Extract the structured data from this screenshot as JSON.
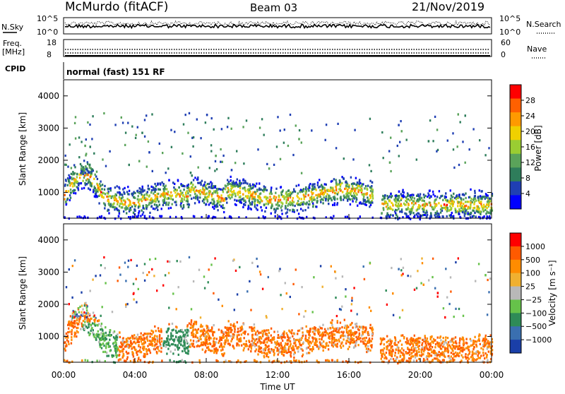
{
  "header": {
    "station": "McMurdo (fitACF)",
    "beam": "Beam 03",
    "date": "21/Nov/2019"
  },
  "top_panels": {
    "noise_left_label": "N.Sky",
    "noise_right_label": "N.Search",
    "noise_ticks_left": [
      "10^5",
      "10^0"
    ],
    "noise_ticks_right": [
      "10^5",
      "10^0"
    ],
    "freq_label_1": "Freq.",
    "freq_label_2": "[MHz]",
    "freq_ticks": [
      "18",
      "8"
    ],
    "nave_label": "Nave",
    "nave_ticks": [
      "60",
      "0"
    ],
    "cpid_label": "CPID",
    "cpid_value": "normal (fast) 151 RF"
  },
  "chart_data": [
    {
      "type": "heatmap",
      "name": "power",
      "ylabel": "Slant Range [km]",
      "yticks": [
        1000,
        2000,
        3000,
        4000
      ],
      "ylim": [
        200,
        4500
      ],
      "xlim": [
        0,
        24
      ],
      "colorbar_label": "Power [dB]",
      "colorbar_ticks": [
        "28",
        "24",
        "20",
        "16",
        "12",
        "8",
        "4"
      ],
      "colorscale": [
        "#0000ff",
        "#1f3fb3",
        "#2e7d5b",
        "#5aa35a",
        "#9acd32",
        "#f0d000",
        "#ff9a00",
        "#ff6000",
        "#ff0000"
      ]
    },
    {
      "type": "heatmap",
      "name": "velocity",
      "ylabel": "Slant Range [km]",
      "yticks": [
        1000,
        2000,
        3000,
        4000
      ],
      "ylim": [
        200,
        4500
      ],
      "xlim": [
        0,
        24
      ],
      "xlabel": "Time UT",
      "xtick_labels": [
        "00:00",
        "04:00",
        "08:00",
        "12:00",
        "16:00",
        "20:00",
        "00:00"
      ],
      "colorbar_label": "Velocity [m s⁻¹]",
      "colorbar_ticks": [
        "1000",
        "500",
        "100",
        "25",
        "−25",
        "−100",
        "−500",
        "−1000"
      ],
      "colorscale": [
        "#1a3fa8",
        "#3a6fb0",
        "#2e8b57",
        "#66c24a",
        "#b8b8b8",
        "#f0b030",
        "#ff8c00",
        "#ff5a00",
        "#ff0000"
      ]
    }
  ]
}
